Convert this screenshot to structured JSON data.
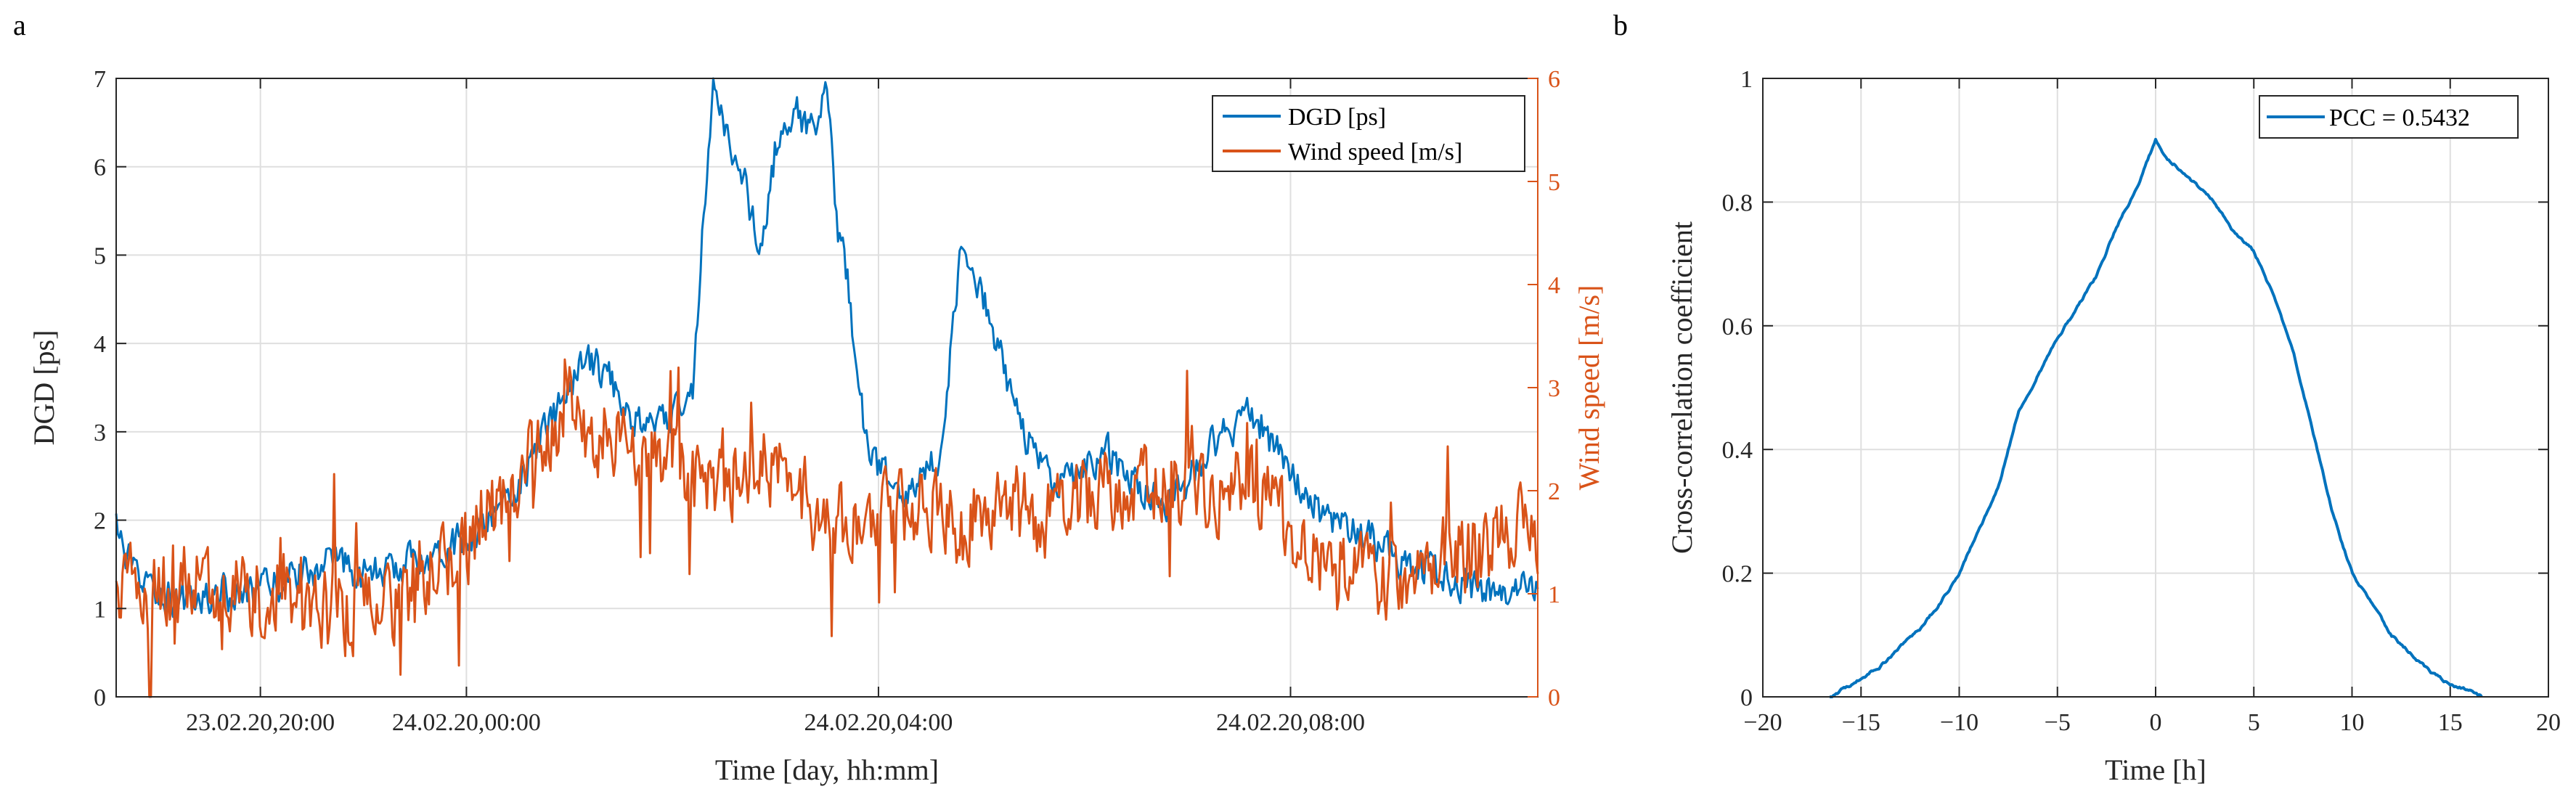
{
  "panels": {
    "a": {
      "label": "a"
    },
    "b": {
      "label": "b"
    }
  },
  "colors": {
    "dgd": "#0072BD",
    "wind": "#D95319",
    "axis": "#262626",
    "grid": "#dfdfdf"
  },
  "chart_data": [
    {
      "type": "line",
      "panel": "a",
      "title": "",
      "xlabel": "Time [day, hh:mm]",
      "ylabel": "DGD [ps]",
      "ylabel_right": "Wind speed [m/s]",
      "xlim_hours": [
        -3.4,
        10.4
      ],
      "x_ticks": [
        {
          "h": -2,
          "label": "23.02.20,20:00"
        },
        {
          "h": 0,
          "label": "24.02.20,00:00"
        },
        {
          "h": 4,
          "label": "24.02.20,04:00"
        },
        {
          "h": 8,
          "label": "24.02.20,08:00"
        }
      ],
      "ylim": [
        0,
        7
      ],
      "y_ticks": [
        "0",
        "1",
        "2",
        "3",
        "4",
        "5",
        "6",
        "7"
      ],
      "ylim_right": [
        0,
        6
      ],
      "y_ticks_right": [
        "0",
        "1",
        "2",
        "3",
        "4",
        "5",
        "6"
      ],
      "grid": true,
      "legend_position": "top-right",
      "series": [
        {
          "name": "DGD [ps]",
          "axis": "left",
          "color": "#0072BD",
          "points": [
            [
              -3.4,
              1.9
            ],
            [
              -3.2,
              1.3
            ],
            [
              -3.0,
              1.2
            ],
            [
              -2.8,
              1.1
            ],
            [
              -2.6,
              1.1
            ],
            [
              -2.4,
              1.2
            ],
            [
              -2.2,
              1.1
            ],
            [
              -2.0,
              1.2
            ],
            [
              -1.8,
              1.3
            ],
            [
              -1.6,
              1.4
            ],
            [
              -1.4,
              1.5
            ],
            [
              -1.2,
              1.5
            ],
            [
              -1.0,
              1.4
            ],
            [
              -0.8,
              1.4
            ],
            [
              -0.6,
              1.5
            ],
            [
              -0.4,
              1.6
            ],
            [
              -0.2,
              1.7
            ],
            [
              0.0,
              1.8
            ],
            [
              0.2,
              2.0
            ],
            [
              0.4,
              2.2
            ],
            [
              0.6,
              2.6
            ],
            [
              0.8,
              3.1
            ],
            [
              1.0,
              3.5
            ],
            [
              1.2,
              3.8
            ],
            [
              1.4,
              3.6
            ],
            [
              1.6,
              3.2
            ],
            [
              1.8,
              3.0
            ],
            [
              2.0,
              3.2
            ],
            [
              2.2,
              3.5
            ],
            [
              2.3,
              5.5
            ],
            [
              2.4,
              6.9
            ],
            [
              2.55,
              6.3
            ],
            [
              2.7,
              5.8
            ],
            [
              2.85,
              5.0
            ],
            [
              3.0,
              6.2
            ],
            [
              3.2,
              6.6
            ],
            [
              3.4,
              6.4
            ],
            [
              3.5,
              6.9
            ],
            [
              3.6,
              5.2
            ],
            [
              3.7,
              4.8
            ],
            [
              3.8,
              3.6
            ],
            [
              3.9,
              2.8
            ],
            [
              4.0,
              2.6
            ],
            [
              4.2,
              2.2
            ],
            [
              4.4,
              2.4
            ],
            [
              4.6,
              2.8
            ],
            [
              4.8,
              5.0
            ],
            [
              5.0,
              4.6
            ],
            [
              5.2,
              3.8
            ],
            [
              5.4,
              3.0
            ],
            [
              5.6,
              2.6
            ],
            [
              5.8,
              2.4
            ],
            [
              6.0,
              2.6
            ],
            [
              6.2,
              2.8
            ],
            [
              6.4,
              2.5
            ],
            [
              6.6,
              2.3
            ],
            [
              6.8,
              2.2
            ],
            [
              7.0,
              2.4
            ],
            [
              7.2,
              2.8
            ],
            [
              7.4,
              3.0
            ],
            [
              7.6,
              3.3
            ],
            [
              7.8,
              2.9
            ],
            [
              8.0,
              2.5
            ],
            [
              8.2,
              2.2
            ],
            [
              8.4,
              2.0
            ],
            [
              8.6,
              1.9
            ],
            [
              8.8,
              1.8
            ],
            [
              9.0,
              1.6
            ],
            [
              9.2,
              1.5
            ],
            [
              9.4,
              1.4
            ],
            [
              9.6,
              1.3
            ],
            [
              9.8,
              1.2
            ],
            [
              10.0,
              1.2
            ],
            [
              10.2,
              1.2
            ],
            [
              10.4,
              1.3
            ]
          ],
          "noise": 0.28
        },
        {
          "name": "Wind speed [m/s]",
          "axis": "right",
          "color": "#D95319",
          "points": [
            [
              -3.4,
              1.2
            ],
            [
              -3.2,
              1.0
            ],
            [
              -3.0,
              1.0
            ],
            [
              -2.8,
              1.1
            ],
            [
              -2.6,
              1.2
            ],
            [
              -2.4,
              1.1
            ],
            [
              -2.2,
              1.0
            ],
            [
              -2.0,
              1.0
            ],
            [
              -1.8,
              1.1
            ],
            [
              -1.6,
              1.0
            ],
            [
              -1.4,
              0.9
            ],
            [
              -1.2,
              0.8
            ],
            [
              -1.0,
              0.9
            ],
            [
              -0.8,
              0.8
            ],
            [
              -0.6,
              0.9
            ],
            [
              -0.4,
              1.1
            ],
            [
              -0.2,
              1.3
            ],
            [
              0.0,
              1.5
            ],
            [
              0.2,
              1.8
            ],
            [
              0.4,
              2.0
            ],
            [
              0.6,
              2.3
            ],
            [
              0.8,
              2.6
            ],
            [
              1.0,
              2.8
            ],
            [
              1.2,
              2.6
            ],
            [
              1.4,
              2.5
            ],
            [
              1.6,
              2.3
            ],
            [
              1.8,
              2.4
            ],
            [
              2.0,
              2.2
            ],
            [
              2.2,
              2.1
            ],
            [
              2.4,
              2.0
            ],
            [
              2.6,
              2.1
            ],
            [
              2.8,
              2.3
            ],
            [
              3.0,
              2.2
            ],
            [
              3.2,
              2.0
            ],
            [
              3.4,
              1.8
            ],
            [
              3.6,
              1.7
            ],
            [
              3.8,
              1.6
            ],
            [
              4.0,
              1.7
            ],
            [
              4.2,
              1.8
            ],
            [
              4.4,
              1.9
            ],
            [
              4.6,
              1.7
            ],
            [
              4.8,
              1.6
            ],
            [
              5.0,
              1.8
            ],
            [
              5.2,
              1.9
            ],
            [
              5.4,
              1.8
            ],
            [
              5.6,
              1.7
            ],
            [
              5.8,
              1.8
            ],
            [
              6.0,
              1.9
            ],
            [
              6.2,
              2.0
            ],
            [
              6.4,
              2.1
            ],
            [
              6.6,
              2.0
            ],
            [
              6.8,
              2.1
            ],
            [
              7.0,
              2.0
            ],
            [
              7.2,
              1.9
            ],
            [
              7.4,
              2.0
            ],
            [
              7.6,
              2.1
            ],
            [
              7.8,
              1.9
            ],
            [
              8.0,
              1.6
            ],
            [
              8.2,
              1.4
            ],
            [
              8.4,
              1.3
            ],
            [
              8.6,
              1.2
            ],
            [
              8.8,
              1.2
            ],
            [
              9.0,
              1.1
            ],
            [
              9.2,
              1.2
            ],
            [
              9.4,
              1.3
            ],
            [
              9.6,
              1.4
            ],
            [
              9.8,
              1.4
            ],
            [
              10.0,
              1.5
            ],
            [
              10.2,
              1.6
            ],
            [
              10.4,
              1.5
            ]
          ],
          "noise": 0.55
        }
      ]
    },
    {
      "type": "line",
      "panel": "b",
      "title": "",
      "xlabel": "Time [h]",
      "ylabel": "Cross-correlation coefficient",
      "xlim": [
        -20,
        20
      ],
      "x_ticks": [
        "-20",
        "-15",
        "-10",
        "-5",
        "0",
        "5",
        "10",
        "15",
        "20"
      ],
      "ylim": [
        0,
        1
      ],
      "y_ticks": [
        "0",
        "0.2",
        "0.4",
        "0.6",
        "0.8",
        "1"
      ],
      "grid": true,
      "legend_position": "top-right",
      "series": [
        {
          "name": "PCC = 0.5432",
          "color": "#0072BD",
          "x": [
            -16.6,
            -15.5,
            -14,
            -13,
            -12,
            -11,
            -10,
            -9,
            -8,
            -7,
            -6,
            -5,
            -4,
            -3,
            -2,
            -1,
            0,
            0.5,
            1,
            2,
            3,
            4,
            5,
            6,
            7,
            8,
            9,
            10,
            11,
            12,
            13,
            14,
            15,
            16,
            16.6
          ],
          "values": [
            0,
            0.02,
            0.05,
            0.08,
            0.11,
            0.15,
            0.2,
            0.27,
            0.34,
            0.46,
            0.52,
            0.58,
            0.63,
            0.68,
            0.76,
            0.82,
            0.9,
            0.87,
            0.86,
            0.83,
            0.8,
            0.75,
            0.72,
            0.65,
            0.56,
            0.43,
            0.3,
            0.2,
            0.15,
            0.1,
            0.07,
            0.04,
            0.02,
            0.01,
            0
          ]
        }
      ]
    }
  ]
}
